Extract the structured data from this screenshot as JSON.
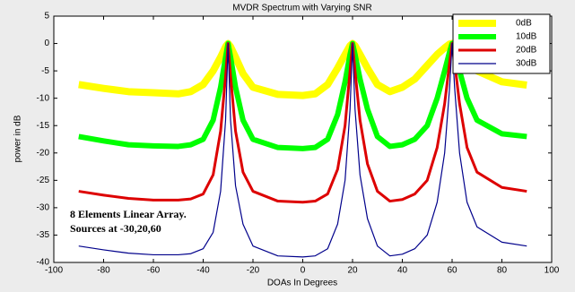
{
  "chart_data": {
    "type": "line",
    "title": "MVDR Spectrum with Varying SNR",
    "xlabel": "DOAs In Degrees",
    "ylabel": "power in dB",
    "annotations": [
      "8 Elements Linear Array.",
      "Sources at -30,20,60"
    ],
    "legend": "top-right",
    "xlim": [
      -100,
      100
    ],
    "xticks": [
      -100,
      -80,
      -60,
      -40,
      -20,
      0,
      20,
      40,
      60,
      80,
      100
    ],
    "ylim": [
      -40,
      5
    ],
    "yticks": [
      -40,
      -35,
      -30,
      -25,
      -20,
      -15,
      -10,
      -5,
      0,
      5
    ],
    "x": [
      -90,
      -80,
      -70,
      -60,
      -50,
      -45,
      -40,
      -36,
      -33,
      -31,
      -30,
      -29,
      -27,
      -24,
      -20,
      -10,
      0,
      5,
      10,
      14,
      17,
      19,
      20,
      21,
      23,
      26,
      30,
      35,
      40,
      45,
      50,
      54,
      57,
      59,
      60,
      61,
      63,
      66,
      70,
      80,
      90
    ],
    "series": [
      {
        "name": "0dB",
        "color": "#ffff00",
        "width": 8,
        "values": [
          -7.5,
          -8.2,
          -8.8,
          -9,
          -9.2,
          -8.8,
          -7.5,
          -5,
          -2.5,
          -0.6,
          0,
          -0.6,
          -2.5,
          -5.5,
          -8,
          -9.3,
          -9.5,
          -9.2,
          -7.5,
          -4.5,
          -2,
          -0.4,
          0,
          -0.4,
          -2,
          -4.5,
          -7.5,
          -8.8,
          -8,
          -6.5,
          -4,
          -2,
          -0.8,
          -0.1,
          0,
          -0.1,
          -0.8,
          -2.5,
          -5,
          -7,
          -7.6
        ]
      },
      {
        "name": "10dB",
        "color": "#00ff00",
        "width": 6,
        "values": [
          -17,
          -17.8,
          -18.5,
          -18.7,
          -18.8,
          -18.5,
          -17.5,
          -14,
          -8,
          -2.5,
          0,
          -2.5,
          -8,
          -14,
          -17.5,
          -19,
          -19.2,
          -19,
          -17.5,
          -13,
          -7,
          -2,
          0,
          -2,
          -6.5,
          -12,
          -17,
          -18.8,
          -18.5,
          -17.5,
          -15,
          -10,
          -5,
          -1.5,
          0,
          -1.5,
          -5,
          -10,
          -14,
          -16.5,
          -17
        ]
      },
      {
        "name": "20dB",
        "color": "#dd0000",
        "width": 3,
        "values": [
          -27,
          -27.7,
          -28.3,
          -28.6,
          -28.6,
          -28.4,
          -27.5,
          -24,
          -16,
          -6,
          0,
          -6,
          -16,
          -23.5,
          -27,
          -28.8,
          -29,
          -28.8,
          -27.5,
          -23,
          -15,
          -5,
          0,
          -5,
          -14,
          -22,
          -27,
          -28.8,
          -28.5,
          -27.5,
          -25,
          -19,
          -11,
          -3.5,
          0,
          -3.5,
          -11,
          -19,
          -23.5,
          -26.3,
          -27
        ]
      },
      {
        "name": "30dB",
        "color": "#00008b",
        "width": 1.2,
        "values": [
          -37,
          -37.7,
          -38.3,
          -38.6,
          -38.6,
          -38.4,
          -37.5,
          -34.5,
          -27,
          -14,
          0,
          -14,
          -26,
          -33,
          -37,
          -38.8,
          -39,
          -38.8,
          -37.5,
          -33,
          -25,
          -12,
          0,
          -12,
          -24,
          -32,
          -37,
          -38.8,
          -38.5,
          -37.5,
          -35,
          -29,
          -20,
          -8,
          0,
          -8,
          -20,
          -29,
          -33.5,
          -36.3,
          -37
        ]
      }
    ]
  }
}
